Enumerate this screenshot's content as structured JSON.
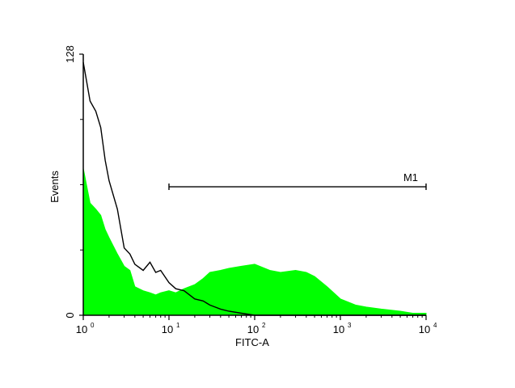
{
  "chart_data": {
    "type": "area",
    "xlabel": "FITC-A",
    "ylabel": "Events",
    "x_scale": "log",
    "xlim": [
      1,
      10000
    ],
    "ylim": [
      0,
      128
    ],
    "x_ticks": [
      {
        "value": 1,
        "base": "10",
        "exp": "0"
      },
      {
        "value": 10,
        "base": "10",
        "exp": "1"
      },
      {
        "value": 100,
        "base": "10",
        "exp": "2"
      },
      {
        "value": 1000,
        "base": "10",
        "exp": "3"
      },
      {
        "value": 10000,
        "base": "10",
        "exp": "4"
      }
    ],
    "y_ticks": [
      {
        "value": 0,
        "label": "0"
      },
      {
        "value": 128,
        "label": "128"
      }
    ],
    "marker": {
      "label": "M1",
      "x_start": 10,
      "x_end": 10000,
      "y": 63
    },
    "grid": false,
    "series": [
      {
        "color": "#000000",
        "style": "line",
        "x": [
          1,
          1.2,
          1.4,
          1.6,
          1.8,
          2,
          2.5,
          3,
          3.5,
          4,
          5,
          6,
          7,
          8,
          10,
          12,
          15,
          20,
          25,
          30,
          40,
          50,
          70,
          100,
          1000,
          10000
        ],
        "y": [
          124,
          105,
          100,
          92,
          76,
          66,
          52,
          33,
          30,
          25,
          22,
          26,
          21,
          22,
          16,
          13,
          12,
          8,
          7,
          5,
          3,
          2,
          1,
          0,
          0,
          0
        ]
      },
      {
        "color": "#00ff00",
        "style": "filled",
        "x": [
          1,
          1.2,
          1.4,
          1.6,
          1.8,
          2,
          2.5,
          3,
          3.5,
          4,
          5,
          6,
          7,
          8,
          10,
          12,
          15,
          20,
          25,
          30,
          40,
          50,
          70,
          100,
          150,
          200,
          300,
          400,
          500,
          700,
          1000,
          1500,
          2000,
          3000,
          5000,
          7000,
          10000
        ],
        "y": [
          72,
          55,
          52,
          49,
          42,
          38,
          30,
          24,
          22,
          14,
          12,
          11,
          10,
          11,
          12,
          11,
          13,
          15,
          18,
          21,
          22,
          23,
          24,
          25,
          22,
          21,
          22,
          21,
          19,
          14,
          8,
          5,
          4,
          3,
          2,
          1,
          1
        ]
      }
    ]
  }
}
